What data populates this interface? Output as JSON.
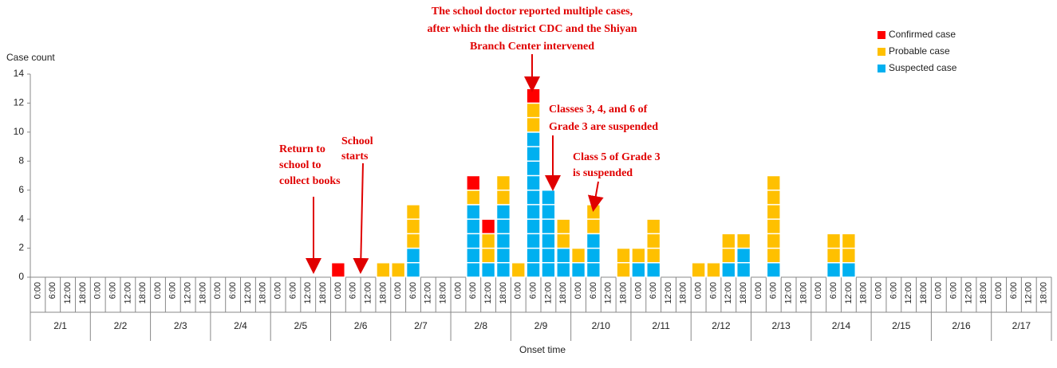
{
  "chart_data": {
    "type": "bar",
    "stacked": true,
    "y_label": "Case count",
    "x_label": "Onset time",
    "categories": [
      "0:00",
      "6:00",
      "12:00",
      "18:00",
      "0:00",
      "6:00",
      "12:00",
      "18:00",
      "0:00",
      "6:00",
      "12:00",
      "18:00",
      "0:00",
      "6:00",
      "12:00",
      "18:00",
      "0:00",
      "6:00",
      "12:00",
      "18:00",
      "0:00",
      "6:00",
      "12:00",
      "18:00",
      "0:00",
      "6:00",
      "12:00",
      "18:00",
      "0:00",
      "6:00",
      "12:00",
      "18:00",
      "0:00",
      "6:00",
      "12:00",
      "18:00",
      "0:00",
      "6:00",
      "12:00",
      "18:00",
      "0:00",
      "6:00",
      "12:00",
      "18:00",
      "0:00",
      "6:00",
      "12:00",
      "18:00",
      "0:00",
      "6:00",
      "12:00",
      "18:00",
      "0:00",
      "6:00",
      "12:00",
      "18:00",
      "0:00",
      "6:00",
      "12:00",
      "18:00",
      "0:00",
      "6:00",
      "12:00",
      "18:00",
      "0:00",
      "6:00",
      "12:00",
      "18:00"
    ],
    "groups": [
      "2/1",
      "2/2",
      "2/3",
      "2/4",
      "2/5",
      "2/6",
      "2/7",
      "2/8",
      "2/9",
      "2/10",
      "2/11",
      "2/12",
      "2/13",
      "2/14",
      "2/15",
      "2/16",
      "2/17"
    ],
    "series": [
      {
        "name": "Confirmed case",
        "color": "#ff0000",
        "values": [
          0,
          0,
          0,
          0,
          0,
          0,
          0,
          0,
          0,
          0,
          0,
          0,
          0,
          0,
          0,
          0,
          0,
          0,
          0,
          0,
          1,
          0,
          0,
          0,
          0,
          0,
          0,
          0,
          0,
          1,
          1,
          0,
          0,
          1,
          0,
          0,
          0,
          0,
          0,
          0,
          0,
          0,
          0,
          0,
          0,
          0,
          0,
          0,
          0,
          0,
          0,
          0,
          0,
          0,
          0,
          0,
          0,
          0,
          0,
          0,
          0,
          0,
          0,
          0,
          0,
          0,
          0,
          0
        ]
      },
      {
        "name": "Probable case",
        "color": "#ffc000",
        "values": [
          0,
          0,
          0,
          0,
          0,
          0,
          0,
          0,
          0,
          0,
          0,
          0,
          0,
          0,
          0,
          0,
          0,
          0,
          0,
          0,
          0,
          0,
          0,
          1,
          1,
          3,
          0,
          0,
          0,
          1,
          2,
          2,
          1,
          2,
          0,
          2,
          1,
          2,
          0,
          2,
          1,
          3,
          0,
          0,
          1,
          1,
          2,
          1,
          0,
          6,
          0,
          0,
          0,
          2,
          2,
          0,
          0,
          0,
          0,
          0,
          0,
          0,
          0,
          0,
          0,
          0,
          0,
          0
        ]
      },
      {
        "name": "Suspected case",
        "color": "#00b0f0",
        "values": [
          0,
          0,
          0,
          0,
          0,
          0,
          0,
          0,
          0,
          0,
          0,
          0,
          0,
          0,
          0,
          0,
          0,
          0,
          0,
          0,
          0,
          0,
          0,
          0,
          0,
          2,
          0,
          0,
          0,
          5,
          1,
          5,
          0,
          10,
          6,
          2,
          1,
          3,
          0,
          0,
          1,
          1,
          0,
          0,
          0,
          0,
          1,
          2,
          0,
          1,
          0,
          0,
          0,
          1,
          1,
          0,
          0,
          0,
          0,
          0,
          0,
          0,
          0,
          0,
          0,
          0,
          0,
          0
        ]
      }
    ],
    "ylim": [
      0,
      14
    ],
    "yticks": [
      0,
      2,
      4,
      6,
      8,
      10,
      12,
      14
    ],
    "annotations": [
      {
        "text": [
          "The school doctor reported multiple cases,",
          "after which the district CDC and the Shiyan",
          "Branch Center intervened"
        ]
      },
      {
        "text": [
          "Classes 3, 4, and 6 of",
          "Grade 3 are suspended"
        ]
      },
      {
        "text": [
          "Class 5 of Grade 3",
          "is suspended"
        ]
      },
      {
        "text": [
          "Return to",
          "school to",
          "collect books"
        ]
      },
      {
        "text": [
          "School",
          "starts"
        ]
      }
    ]
  }
}
